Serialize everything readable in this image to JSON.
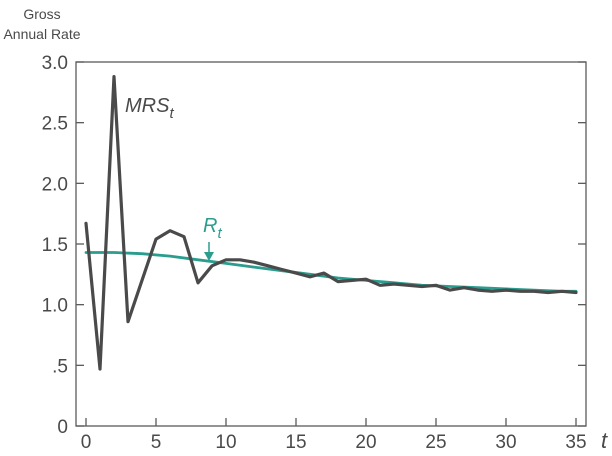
{
  "chart_data": {
    "type": "line",
    "title": "",
    "ylabel_lines": [
      "Gross",
      "Annual Rate"
    ],
    "xlabel": "t",
    "xlim": [
      0,
      35
    ],
    "ylim": [
      0,
      3.0
    ],
    "x_ticks": [
      0,
      5,
      10,
      15,
      20,
      25,
      30,
      35
    ],
    "x_tick_labels": [
      "0",
      "5",
      "10",
      "15",
      "20",
      "25",
      "30",
      "35"
    ],
    "y_ticks": [
      0,
      0.5,
      1.0,
      1.5,
      2.0,
      2.5,
      3.0
    ],
    "y_tick_labels": [
      "0",
      ".5",
      "1.0",
      "1.5",
      "2.0",
      "2.5",
      "3.0"
    ],
    "grid": false,
    "series": [
      {
        "name": "MRS",
        "subscript": "t",
        "color": "#4a4a4a",
        "x": [
          0,
          1,
          2,
          3,
          4,
          5,
          6,
          7,
          8,
          9,
          10,
          11,
          12,
          13,
          14,
          15,
          16,
          17,
          18,
          19,
          20,
          21,
          22,
          23,
          24,
          25,
          26,
          27,
          28,
          29,
          30,
          31,
          32,
          33,
          34,
          35
        ],
        "values": [
          1.67,
          0.47,
          2.88,
          0.86,
          1.2,
          1.54,
          1.61,
          1.56,
          1.18,
          1.32,
          1.37,
          1.37,
          1.35,
          1.32,
          1.29,
          1.26,
          1.23,
          1.26,
          1.19,
          1.2,
          1.21,
          1.16,
          1.17,
          1.16,
          1.15,
          1.16,
          1.12,
          1.14,
          1.12,
          1.11,
          1.12,
          1.11,
          1.11,
          1.1,
          1.11,
          1.1
        ]
      },
      {
        "name": "R",
        "subscript": "t",
        "color": "#2a9d8f",
        "x": [
          0,
          2,
          4,
          6,
          8,
          10,
          12,
          14,
          16,
          18,
          20,
          22,
          24,
          26,
          28,
          30,
          32,
          34,
          35
        ],
        "values": [
          1.43,
          1.43,
          1.42,
          1.4,
          1.37,
          1.34,
          1.31,
          1.28,
          1.25,
          1.22,
          1.2,
          1.18,
          1.16,
          1.15,
          1.14,
          1.13,
          1.12,
          1.11,
          1.11
        ]
      }
    ]
  }
}
